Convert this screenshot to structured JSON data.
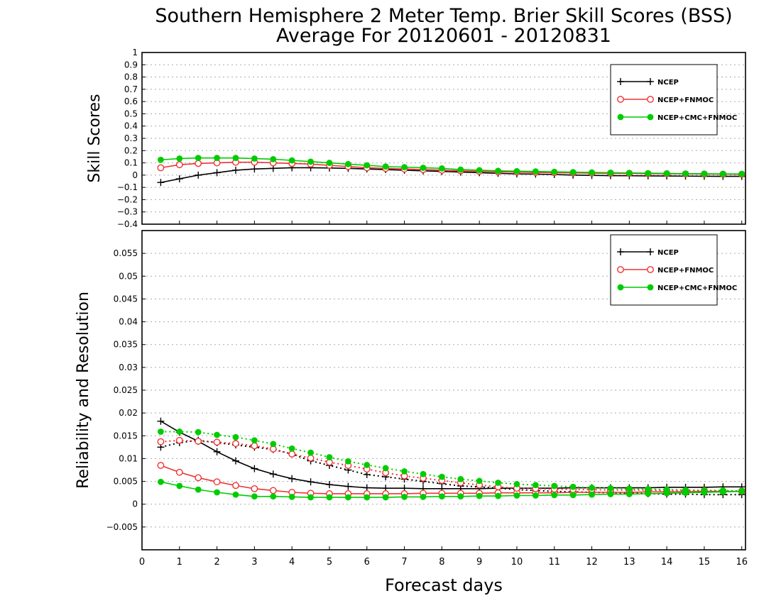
{
  "title": {
    "line1": "Southern Hemisphere 2 Meter Temp. Brier Skill Scores (BSS)",
    "line2": "Average For 20120601 - 20120831"
  },
  "xlabel": "Forecast days",
  "colors": {
    "ncep": "#000000",
    "ncep_fnmoc": "#ee3333",
    "ncep_cmc_fnmoc": "#00cc00",
    "grid": "#aaaaaa"
  },
  "chart_data": [
    {
      "type": "line",
      "ylabel": "Skill Scores",
      "xlim": [
        0,
        16.1
      ],
      "ylim": [
        -0.4,
        1
      ],
      "grid": true,
      "legend_position": "top-right",
      "x_ticks": [
        "0",
        "1",
        "2",
        "3",
        "4",
        "5",
        "6",
        "7",
        "8",
        "9",
        "10",
        "11",
        "12",
        "13",
        "14",
        "15",
        "16"
      ],
      "y_ticks": [
        "−0.4",
        "−0.3",
        "−0.2",
        "−0.1",
        "0",
        "0.1",
        "0.2",
        "0.3",
        "0.4",
        "0.5",
        "0.6",
        "0.7",
        "0.8",
        "0.9",
        "1"
      ],
      "x": [
        0.5,
        1,
        1.5,
        2,
        2.5,
        3,
        3.5,
        4,
        4.5,
        5,
        5.5,
        6,
        6.5,
        7,
        7.5,
        8,
        8.5,
        9,
        9.5,
        10,
        10.5,
        11,
        11.5,
        12,
        12.5,
        13,
        13.5,
        14,
        14.5,
        15,
        15.5,
        16
      ],
      "series": [
        {
          "name": "NCEP",
          "marker": "plus",
          "style": "solid",
          "values": [
            -0.06,
            -0.03,
            0.0,
            0.02,
            0.04,
            0.05,
            0.055,
            0.06,
            0.06,
            0.058,
            0.055,
            0.05,
            0.045,
            0.04,
            0.035,
            0.03,
            0.025,
            0.02,
            0.015,
            0.01,
            0.008,
            0.005,
            0.0,
            -0.002,
            -0.004,
            -0.005,
            -0.006,
            -0.007,
            -0.008,
            -0.009,
            -0.01,
            -0.01
          ]
        },
        {
          "name": "NCEP+FNMOC",
          "marker": "open-circle",
          "style": "solid",
          "values": [
            0.06,
            0.085,
            0.095,
            0.1,
            0.105,
            0.105,
            0.1,
            0.095,
            0.09,
            0.08,
            0.07,
            0.06,
            0.055,
            0.05,
            0.045,
            0.04,
            0.035,
            0.03,
            0.028,
            0.025,
            0.022,
            0.02,
            0.018,
            0.016,
            0.015,
            0.014,
            0.012,
            0.011,
            0.01,
            0.009,
            0.008,
            0.007
          ]
        },
        {
          "name": "NCEP+CMC+FNMOC",
          "marker": "filled-circle",
          "style": "solid",
          "values": [
            0.125,
            0.135,
            0.14,
            0.14,
            0.14,
            0.135,
            0.13,
            0.12,
            0.11,
            0.1,
            0.09,
            0.08,
            0.07,
            0.065,
            0.06,
            0.055,
            0.045,
            0.04,
            0.035,
            0.032,
            0.03,
            0.027,
            0.024,
            0.022,
            0.02,
            0.018,
            0.016,
            0.014,
            0.012,
            0.011,
            0.01,
            0.01
          ]
        }
      ]
    },
    {
      "type": "line",
      "ylabel": "Reliability and Resolution",
      "xlim": [
        0,
        16.1
      ],
      "ylim": [
        -0.01,
        0.06
      ],
      "grid": true,
      "legend_position": "top-right",
      "x_ticks": [
        "0",
        "1",
        "2",
        "3",
        "4",
        "5",
        "6",
        "7",
        "8",
        "9",
        "10",
        "11",
        "12",
        "13",
        "14",
        "15",
        "16"
      ],
      "y_ticks": [
        "−0.005",
        "0",
        "0.005",
        "0.01",
        "0.015",
        "0.02",
        "0.025",
        "0.03",
        "0.035",
        "0.04",
        "0.045",
        "0.05",
        "0.055"
      ],
      "x": [
        0.5,
        1,
        1.5,
        2,
        2.5,
        3,
        3.5,
        4,
        4.5,
        5,
        5.5,
        6,
        6.5,
        7,
        7.5,
        8,
        8.5,
        9,
        9.5,
        10,
        10.5,
        11,
        11.5,
        12,
        12.5,
        13,
        13.5,
        14,
        14.5,
        15,
        15.5,
        16
      ],
      "series": [
        {
          "name": "NCEP",
          "marker": "plus",
          "style": "solid",
          "values": [
            0.0182,
            0.0158,
            0.0138,
            0.0115,
            0.0095,
            0.0078,
            0.0066,
            0.0056,
            0.0049,
            0.0043,
            0.0039,
            0.0036,
            0.0035,
            0.0035,
            0.0034,
            0.0034,
            0.0034,
            0.0034,
            0.0035,
            0.0035,
            0.0035,
            0.0035,
            0.0036,
            0.0036,
            0.0036,
            0.0036,
            0.0036,
            0.0037,
            0.0037,
            0.0037,
            0.0038,
            0.0038
          ]
        },
        {
          "name": "NCEP",
          "marker": "plus",
          "style": "dotted",
          "values": [
            0.0125,
            0.0135,
            0.014,
            0.0135,
            0.013,
            0.0125,
            0.012,
            0.011,
            0.0095,
            0.0085,
            0.0075,
            0.0065,
            0.006,
            0.0055,
            0.005,
            0.0045,
            0.004,
            0.0038,
            0.0035,
            0.0032,
            0.003,
            0.0028,
            0.0027,
            0.0026,
            0.0025,
            0.0024,
            0.0023,
            0.0022,
            0.0022,
            0.0021,
            0.0021,
            0.0021
          ]
        },
        {
          "name": "NCEP+FNMOC",
          "marker": "open-circle",
          "style": "solid",
          "values": [
            0.0085,
            0.007,
            0.0058,
            0.0049,
            0.0041,
            0.0034,
            0.003,
            0.0026,
            0.0024,
            0.0023,
            0.0023,
            0.0023,
            0.0023,
            0.0023,
            0.0024,
            0.0024,
            0.0024,
            0.0024,
            0.0025,
            0.0025,
            0.0025,
            0.0025,
            0.0026,
            0.0026,
            0.0026,
            0.0026,
            0.0027,
            0.0027,
            0.0027,
            0.0028,
            0.0028,
            0.0028
          ]
        },
        {
          "name": "NCEP+FNMOC",
          "marker": "open-circle",
          "style": "dotted",
          "values": [
            0.0137,
            0.014,
            0.0138,
            0.0136,
            0.0133,
            0.0128,
            0.0121,
            0.011,
            0.0101,
            0.0092,
            0.0085,
            0.0077,
            0.0069,
            0.0062,
            0.0057,
            0.0052,
            0.0047,
            0.0042,
            0.0038,
            0.0035,
            0.0034,
            0.0033,
            0.0032,
            0.0032,
            0.0031,
            0.0031,
            0.0031,
            0.003,
            0.003,
            0.003,
            0.0029,
            0.0029
          ]
        },
        {
          "name": "NCEP+CMC+FNMOC",
          "marker": "filled-circle",
          "style": "solid",
          "values": [
            0.0049,
            0.004,
            0.0032,
            0.0026,
            0.0021,
            0.0017,
            0.0017,
            0.0016,
            0.0015,
            0.0015,
            0.0015,
            0.0015,
            0.0015,
            0.0016,
            0.0016,
            0.0017,
            0.0017,
            0.0018,
            0.0018,
            0.0019,
            0.0019,
            0.002,
            0.002,
            0.0021,
            0.0022,
            0.0022,
            0.0023,
            0.0024,
            0.0025,
            0.0026,
            0.0027,
            0.0028
          ]
        },
        {
          "name": "NCEP+CMC+FNMOC",
          "marker": "filled-circle",
          "style": "dotted",
          "values": [
            0.0159,
            0.0159,
            0.0158,
            0.0152,
            0.0147,
            0.014,
            0.0132,
            0.0122,
            0.0113,
            0.0103,
            0.0094,
            0.0086,
            0.0079,
            0.0072,
            0.0066,
            0.006,
            0.0055,
            0.0051,
            0.0047,
            0.0044,
            0.0042,
            0.004,
            0.0038,
            0.0036,
            0.0035,
            0.0034,
            0.0033,
            0.0032,
            0.0031,
            0.003,
            0.003,
            0.0029
          ]
        }
      ]
    }
  ]
}
